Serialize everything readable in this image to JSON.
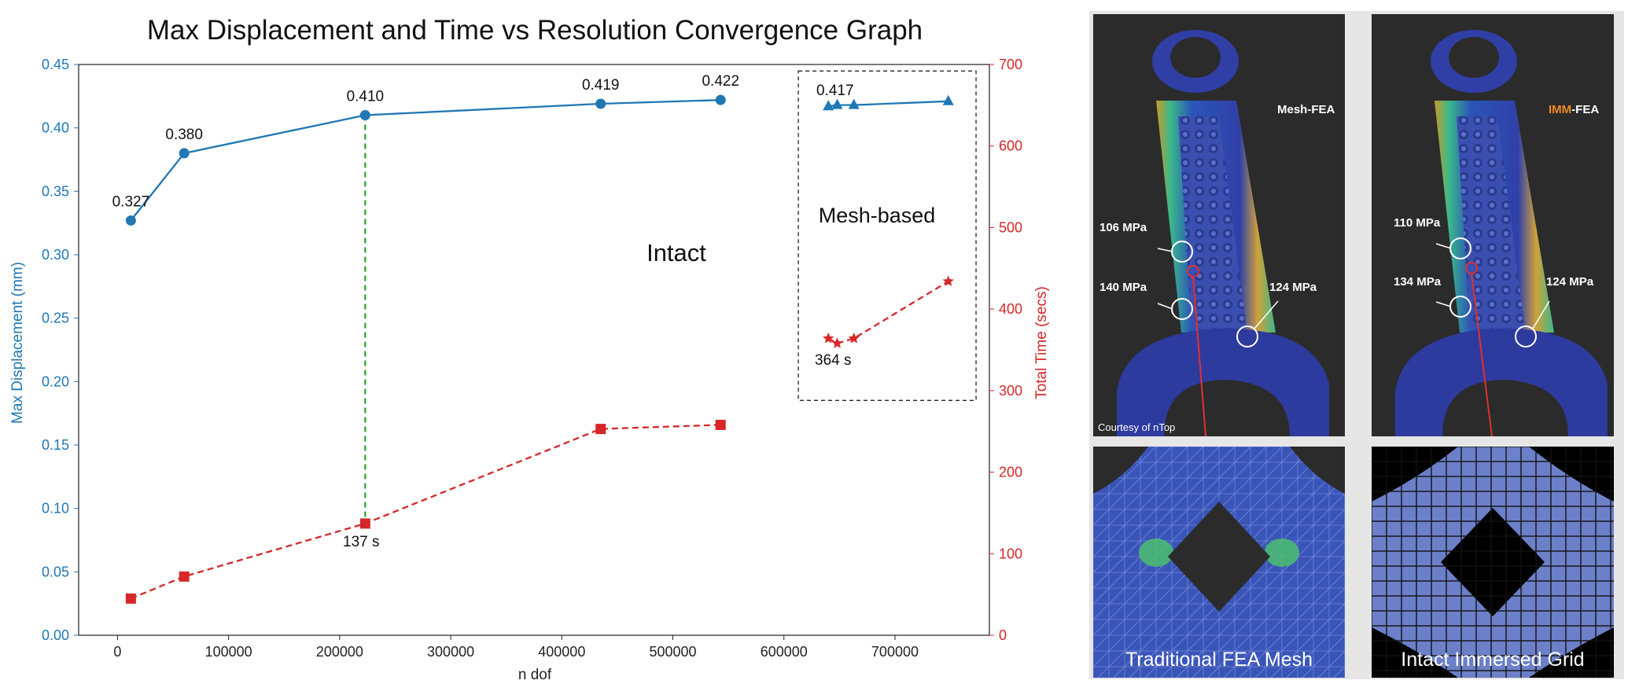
{
  "chart_data": {
    "type": "line",
    "title": "Max Displacement and Time vs Resolution Convergence Graph",
    "xlabel": "n dof",
    "ylabel_left": "Max Displacement (mm)",
    "ylabel_right": "Total Time (secs)",
    "xlim": [
      -35000,
      785000
    ],
    "ylim_left": [
      0,
      0.45
    ],
    "ylim_right": [
      0,
      700
    ],
    "x_ticks": [
      0,
      100000,
      200000,
      300000,
      400000,
      500000,
      600000,
      700000
    ],
    "y_ticks_left": [
      0.0,
      0.05,
      0.1,
      0.15,
      0.2,
      0.25,
      0.3,
      0.35,
      0.4,
      0.45
    ],
    "y_ticks_right": [
      0,
      100,
      200,
      300,
      400,
      500,
      600,
      700
    ],
    "colors": {
      "displacement": "#1f77b4",
      "time": "#d62728",
      "guide": "#2ca02c"
    },
    "series": [
      {
        "name": "Intact displacement",
        "axis": "left",
        "marker": "circle",
        "style": "solid",
        "x": [
          12000,
          60000,
          223000,
          435000,
          543000
        ],
        "values": [
          0.327,
          0.38,
          0.41,
          0.419,
          0.422
        ],
        "labels": [
          "0.327",
          "0.380",
          "0.410",
          "0.419",
          "0.422"
        ]
      },
      {
        "name": "Intact time",
        "axis": "right",
        "marker": "square",
        "style": "dashed",
        "x": [
          12000,
          60000,
          223000,
          435000,
          543000
        ],
        "values": [
          45,
          72,
          137,
          253,
          258
        ]
      },
      {
        "name": "Mesh-based displacement",
        "axis": "left",
        "marker": "triangle",
        "style": "solid",
        "x": [
          640000,
          648000,
          663000,
          748000
        ],
        "values": [
          0.417,
          0.418,
          0.418,
          0.421
        ]
      },
      {
        "name": "Mesh-based time",
        "axis": "right",
        "marker": "star",
        "style": "dashed",
        "x": [
          640000,
          648000,
          663000,
          748000
        ],
        "values": [
          364,
          358,
          364,
          434
        ]
      }
    ],
    "annotations": {
      "intact": "Intact",
      "mesh_based": "Mesh-based",
      "mesh_disp": "0.417",
      "intact_time": "137 s",
      "mesh_time": "364 s"
    }
  },
  "panels": {
    "mesh_fea": {
      "label_prefix": "Mesh",
      "label_suffix": "-FEA",
      "stress": [
        "106 MPa",
        "140 MPa",
        "124 MPa"
      ],
      "credit": "Courtesy of nTop",
      "caption": "Traditional FEA Mesh"
    },
    "imm_fea": {
      "label_prefix": "IMM",
      "label_suffix": "-FEA",
      "stress": [
        "110 MPa",
        "134 MPa",
        "124 MPa"
      ],
      "caption": "Intact Immersed Grid"
    }
  }
}
